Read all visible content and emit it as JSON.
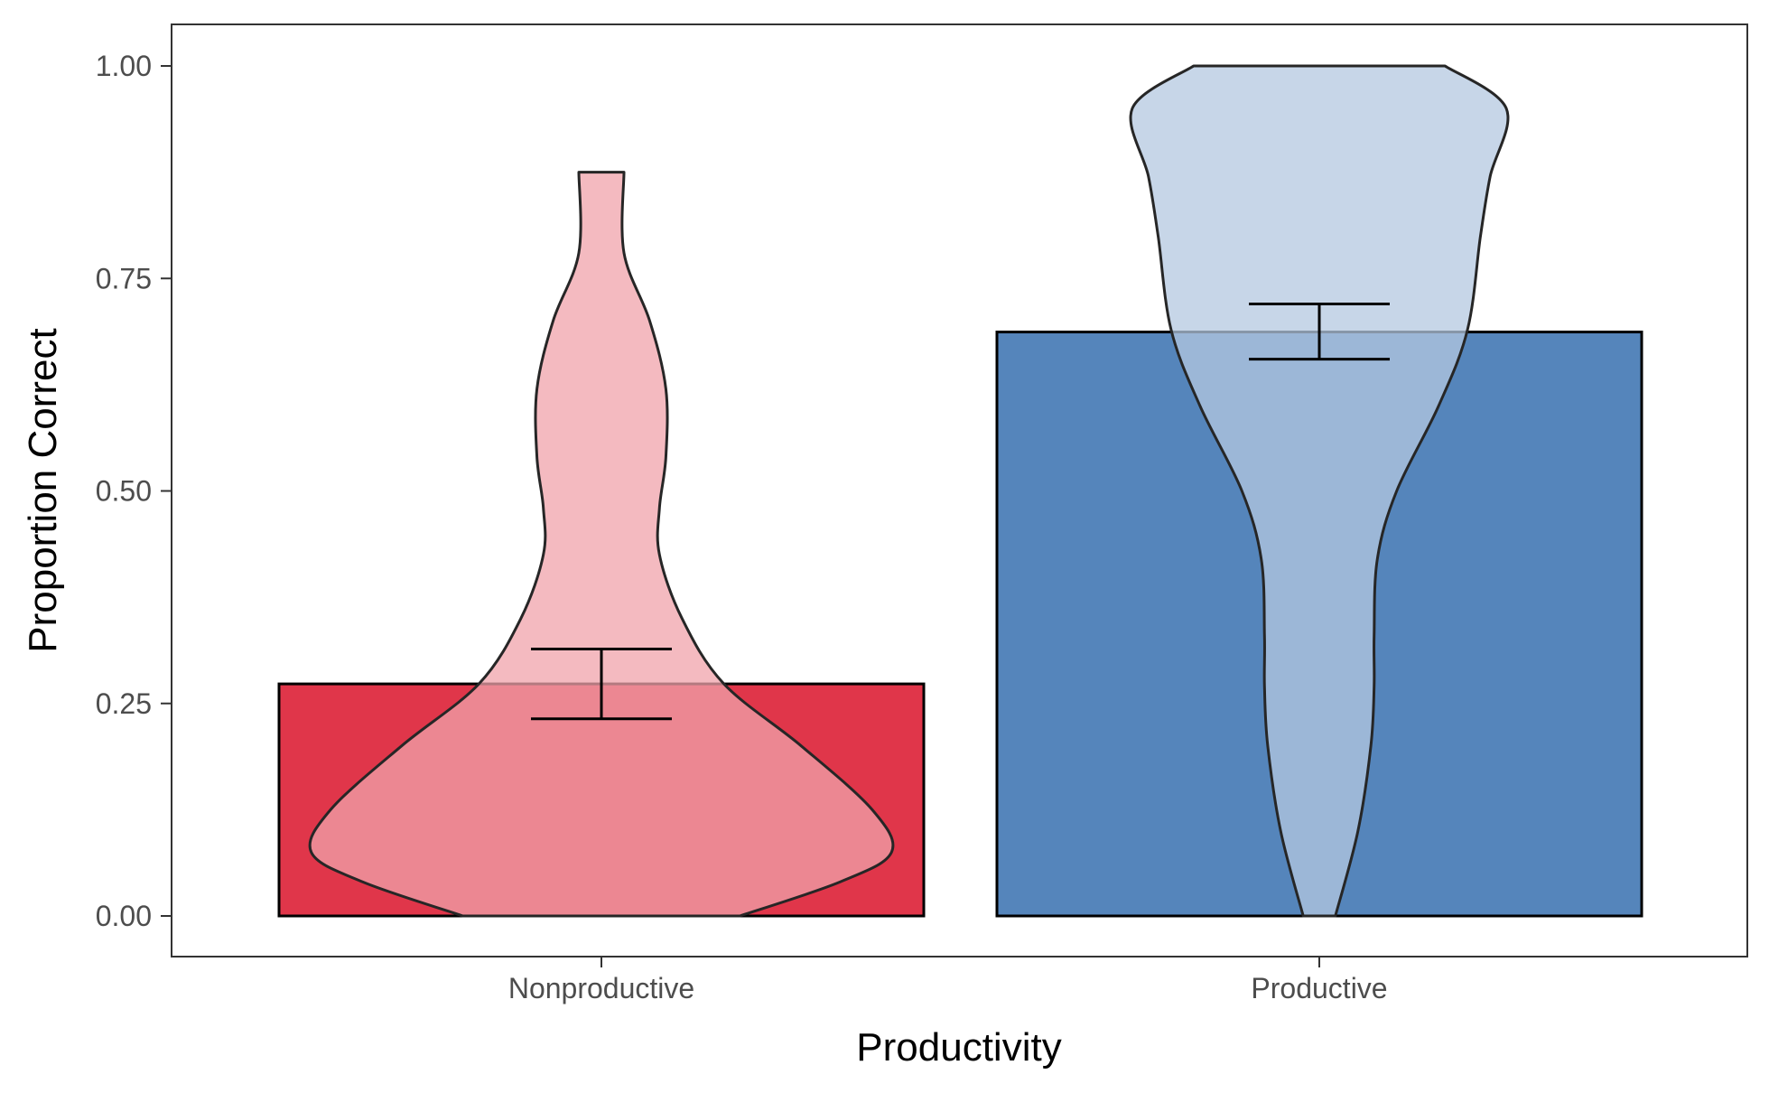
{
  "chart_data": {
    "type": "bar",
    "xlabel": "Productivity",
    "ylabel": "Proportion Correct",
    "categories": [
      "Nonproductive",
      "Productive"
    ],
    "values": [
      0.273,
      0.687
    ],
    "error_bars": [
      {
        "lower": 0.232,
        "upper": 0.314
      },
      {
        "lower": 0.655,
        "upper": 0.72
      }
    ],
    "ylim": [
      -0.05,
      1.05
    ],
    "yticks": [
      0,
      0.25,
      0.5,
      0.75,
      1
    ],
    "ytick_labels": [
      "0.00",
      "0.25",
      "0.50",
      "0.75",
      "1.00"
    ],
    "grid": false,
    "colors": {
      "bar": [
        "#dc1a31",
        "#3e74b2"
      ],
      "violin": [
        "#f0a3ab",
        "#b4c8e0"
      ],
      "outline": "#262626",
      "axis": "#333333"
    },
    "violins": [
      {
        "category": "Nonproductive",
        "min": 0,
        "max": 0.875,
        "profile": [
          [
            0.0,
            0.43
          ],
          [
            0.04,
            0.74
          ],
          [
            0.075,
            0.9
          ],
          [
            0.125,
            0.84
          ],
          [
            0.2,
            0.62
          ],
          [
            0.273,
            0.38
          ],
          [
            0.35,
            0.25
          ],
          [
            0.425,
            0.18
          ],
          [
            0.48,
            0.18
          ],
          [
            0.54,
            0.2
          ],
          [
            0.62,
            0.2
          ],
          [
            0.7,
            0.15
          ],
          [
            0.78,
            0.07
          ],
          [
            0.875,
            0.07
          ]
        ]
      },
      {
        "category": "Productive",
        "min": 0,
        "max": 1.0,
        "profile": [
          [
            0.0,
            0.05
          ],
          [
            0.1,
            0.12
          ],
          [
            0.2,
            0.16
          ],
          [
            0.27,
            0.17
          ],
          [
            0.33,
            0.17
          ],
          [
            0.42,
            0.18
          ],
          [
            0.5,
            0.24
          ],
          [
            0.6,
            0.37
          ],
          [
            0.69,
            0.46
          ],
          [
            0.8,
            0.5
          ],
          [
            0.87,
            0.53
          ],
          [
            0.95,
            0.58
          ],
          [
            1.0,
            0.39
          ]
        ]
      }
    ]
  }
}
